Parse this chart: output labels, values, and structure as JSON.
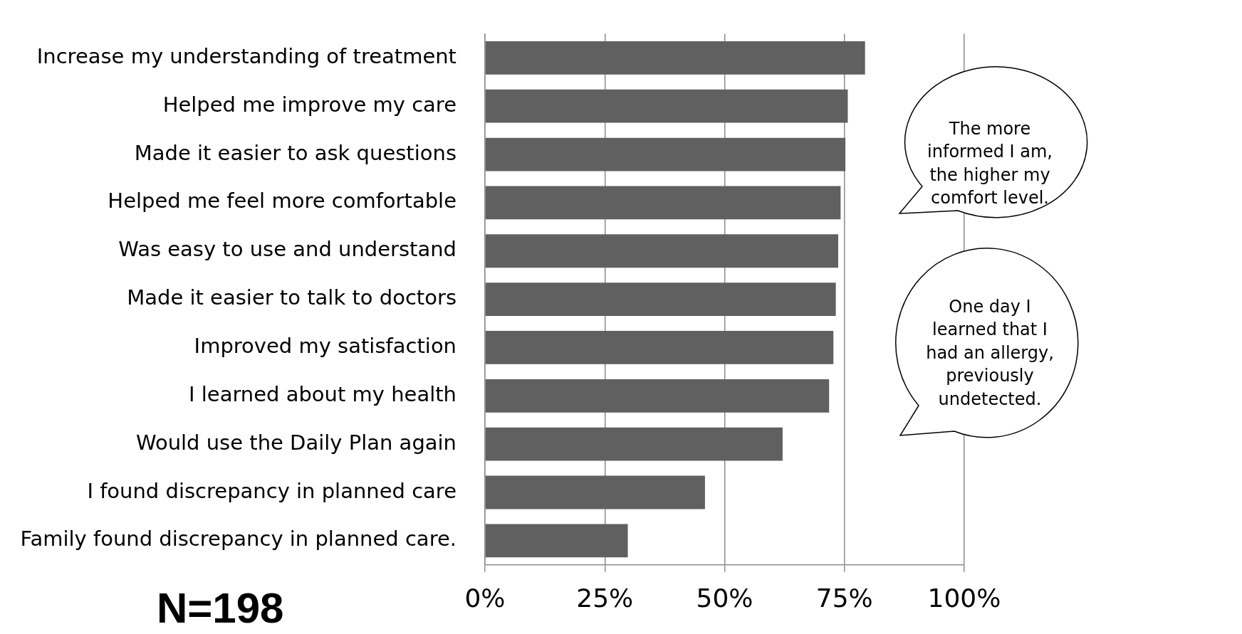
{
  "chart_data": {
    "type": "bar",
    "orientation": "horizontal",
    "categories": [
      "Increase my understanding of treatment",
      "Helped me improve my care",
      "Made it easier to ask questions",
      "Helped me feel more comfortable",
      "Was easy to use and understand",
      "Made it easier to talk to doctors",
      "Improved my satisfaction",
      "I learned about my health",
      "Would use the Daily Plan again",
      "I found discrepancy in planned care",
      "Family found discrepancy in planned care."
    ],
    "values": [
      79.3,
      75.7,
      75.2,
      74.2,
      73.7,
      73.2,
      72.7,
      71.8,
      62.1,
      45.9,
      29.8
    ],
    "color": "#606060",
    "xlim": [
      0,
      100
    ],
    "xticks": [
      {
        "value": 0,
        "label": "0%"
      },
      {
        "value": 25,
        "label": "25%"
      },
      {
        "value": 50,
        "label": "50%"
      },
      {
        "value": 75,
        "label": "75%"
      },
      {
        "value": 100,
        "label": "100%"
      }
    ],
    "grid": "x",
    "annotations": [
      "N=198",
      "The more informed I am, the higher my comfort level.",
      "One day I learned that I had an allergy, previously undetected."
    ]
  }
}
